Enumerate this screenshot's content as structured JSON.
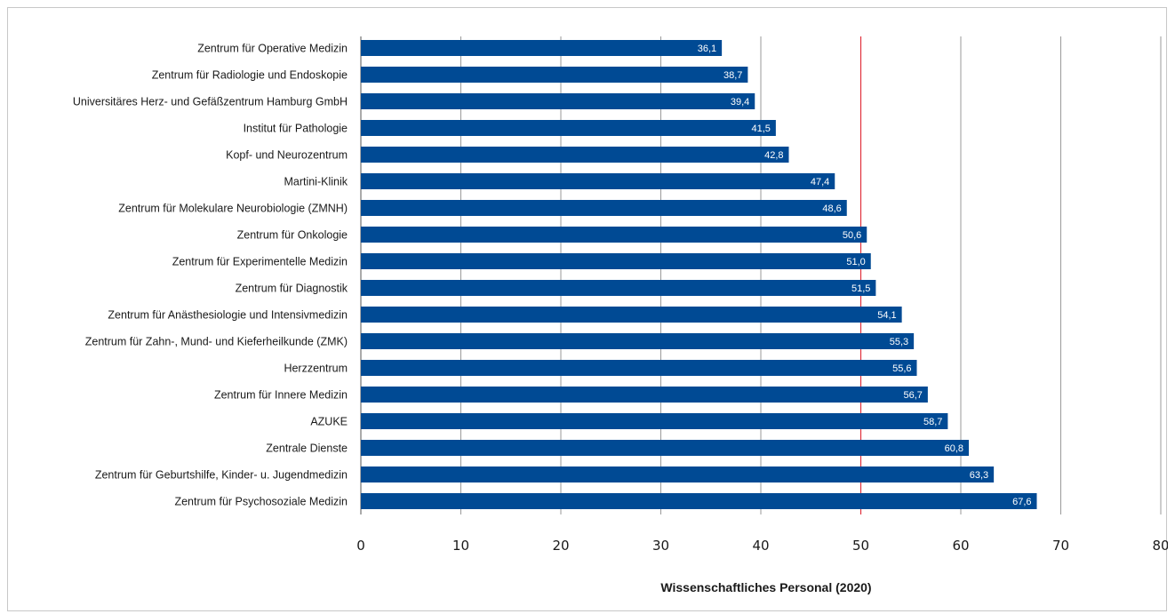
{
  "chart_data": {
    "type": "bar",
    "orientation": "horizontal",
    "categories": [
      "Zentrum für Operative Medizin",
      "Zentrum für Radiologie und Endoskopie",
      "Universitäres Herz- und Gefäßzentrum Hamburg GmbH",
      "Institut für Pathologie",
      "Kopf- und Neurozentrum",
      "Martini-Klinik",
      "Zentrum für Molekulare Neurobiologie (ZMNH)",
      "Zentrum für Onkologie",
      "Zentrum für Experimentelle Medizin",
      "Zentrum für Diagnostik",
      "Zentrum für Anästhesiologie und Intensivmedizin",
      "Zentrum für Zahn-, Mund- und Kieferheilkunde (ZMK)",
      "Herzzentrum",
      "Zentrum für Innere Medizin",
      "AZUKE",
      "Zentrale Dienste",
      "Zentrum für Geburtshilfe, Kinder- u. Jugendmedizin",
      "Zentrum für Psychosoziale Medizin"
    ],
    "values": [
      36.1,
      38.7,
      39.4,
      41.5,
      42.8,
      47.4,
      48.6,
      50.6,
      51.0,
      51.5,
      54.1,
      55.3,
      55.6,
      56.7,
      58.7,
      60.8,
      63.3,
      67.6
    ],
    "value_labels": [
      "36,1",
      "38,7",
      "39,4",
      "41,5",
      "42,8",
      "47,4",
      "48,6",
      "50,6",
      "51,0",
      "51,5",
      "54,1",
      "55,3",
      "55,6",
      "56,7",
      "58,7",
      "60,8",
      "63,3",
      "67,6"
    ],
    "xlabel": "Wissenschaftliches Personal (2020)",
    "xlim": [
      0,
      80
    ],
    "xticks": [
      0,
      10,
      20,
      30,
      40,
      50,
      60,
      70,
      80
    ],
    "xtick_labels": [
      "0",
      "10",
      "20",
      "30",
      "40",
      "50",
      "60",
      "70",
      "80"
    ],
    "reference_line": 50,
    "grid": true,
    "bar_color": "#004a94",
    "reference_color": "#e0303c",
    "grid_color": "#9a9a9a"
  }
}
